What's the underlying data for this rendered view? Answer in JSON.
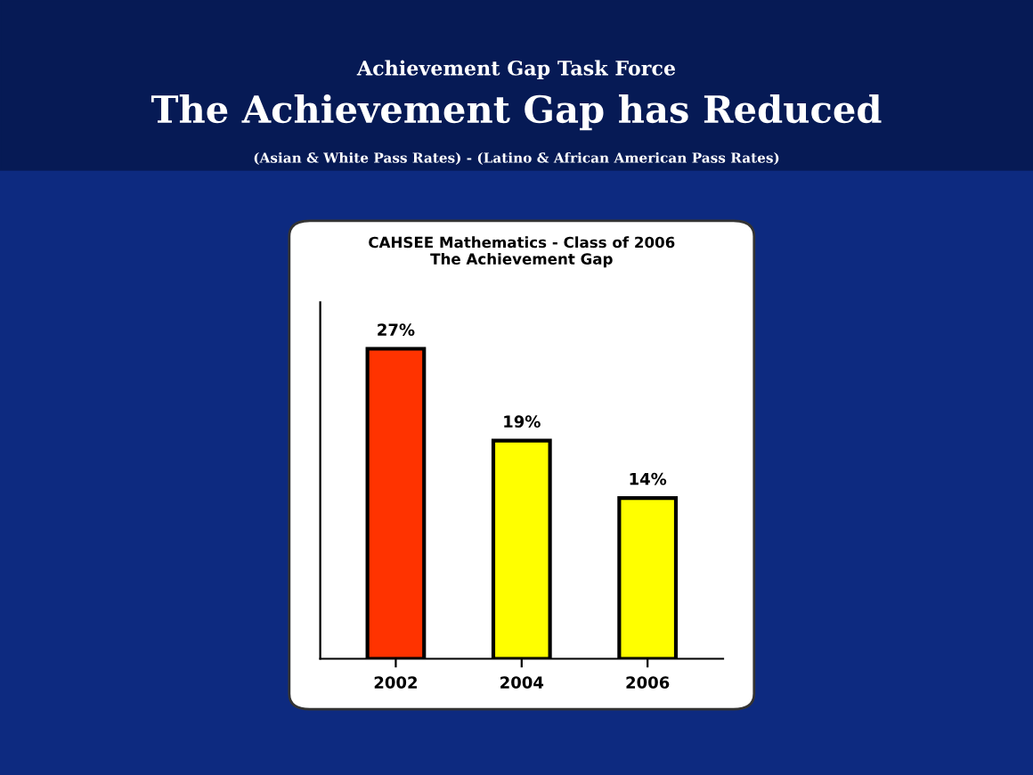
{
  "chart_data": {
    "type": "bar",
    "title": "CAHSEE Mathematics - Class of 2006\nThe Achievement Gap",
    "annotations": [
      "Achievement Gap Task Force",
      "The Achievement Gap has Reduced",
      "(Asian & White Pass Rates) - (Latino & African American Pass Rates)"
    ],
    "categories": [
      "2002",
      "2004",
      "2006"
    ],
    "values": [
      27,
      19,
      14
    ],
    "colors": [
      "#ff3300",
      "#ffff00",
      "#ffff00"
    ],
    "value_labels": [
      "27%",
      "19%",
      "14%"
    ],
    "grid": false,
    "legend": false,
    "tick_labels": "x"
  }
}
